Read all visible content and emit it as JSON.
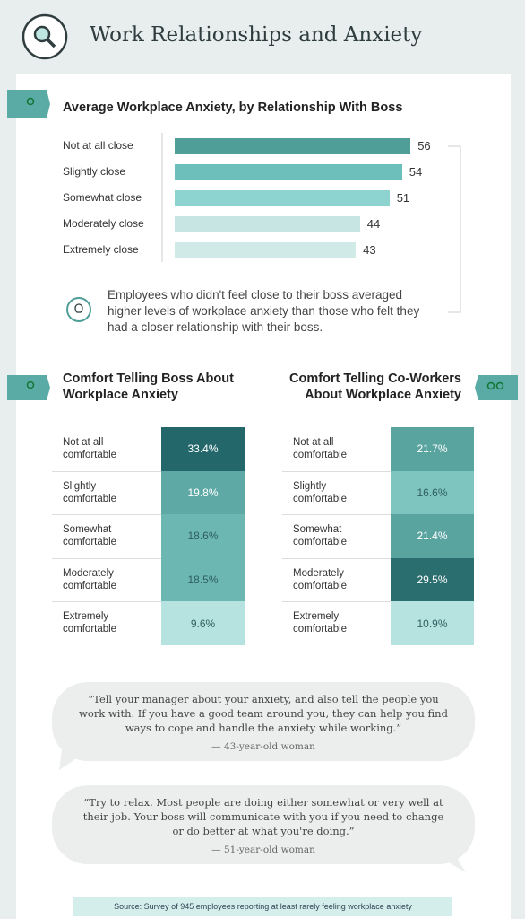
{
  "header": {
    "title": "Work Relationships and Anxiety"
  },
  "chart_data": [
    {
      "type": "bar",
      "title": "Average Workplace Anxiety, by Relationship With Boss",
      "categories": [
        "Not at all close",
        "Slightly close",
        "Somewhat close",
        "Moderately close",
        "Extremely close"
      ],
      "values": [
        56,
        54,
        51,
        44,
        43
      ],
      "colors": [
        "#4f9e98",
        "#6cbfba",
        "#8dd3cf",
        "#c6e5e3",
        "#d0eae8"
      ],
      "note": "Employees who didn't feel close to their boss averaged higher levels of workplace anxiety than those who felt they had a closer relationship with their boss."
    },
    {
      "type": "heatmap",
      "title": "Comfort Telling Boss About Workplace Anxiety",
      "categories": [
        "Not at all comfortable",
        "Slightly comfortable",
        "Somewhat comfortable",
        "Moderately comfortable",
        "Extremely comfortable"
      ],
      "values": [
        33.4,
        19.8,
        18.6,
        18.5,
        9.6
      ],
      "value_labels": [
        "33.4%",
        "19.8%",
        "18.6%",
        "18.5%",
        "9.6%"
      ],
      "colors": [
        "#23676a",
        "#5ea9a5",
        "#6cb7b2",
        "#6cb7b2",
        "#b6e3e0"
      ]
    },
    {
      "type": "heatmap",
      "title": "Comfort Telling Co-Workers About Workplace Anxiety",
      "categories": [
        "Not at all comfortable",
        "Slightly comfortable",
        "Somewhat comfortable",
        "Moderately comfortable",
        "Extremely comfortable"
      ],
      "values": [
        21.7,
        16.6,
        21.4,
        29.5,
        10.9
      ],
      "value_labels": [
        "21.7%",
        "16.6%",
        "21.4%",
        "29.5%",
        "10.9%"
      ],
      "colors": [
        "#5aa4a0",
        "#7ec5c0",
        "#5aa4a0",
        "#2b6e6f",
        "#b6e3e0"
      ]
    }
  ],
  "quotes": [
    {
      "text": "“Tell your manager about your anxiety, and also tell the people you work with. If you have a good team around you, they can help you find ways to cope and handle the anxiety while working.”",
      "attribution": "— 43-year-old woman"
    },
    {
      "text": "“Try to relax. Most people are doing either somewhat or very well at their job. Your boss will communicate with you if you need to change or do better at what you're doing.”",
      "attribution": "— 51-year-old woman"
    }
  ],
  "source": "Source: Survey of 945 employees reporting at least rarely feeling workplace anxiety"
}
